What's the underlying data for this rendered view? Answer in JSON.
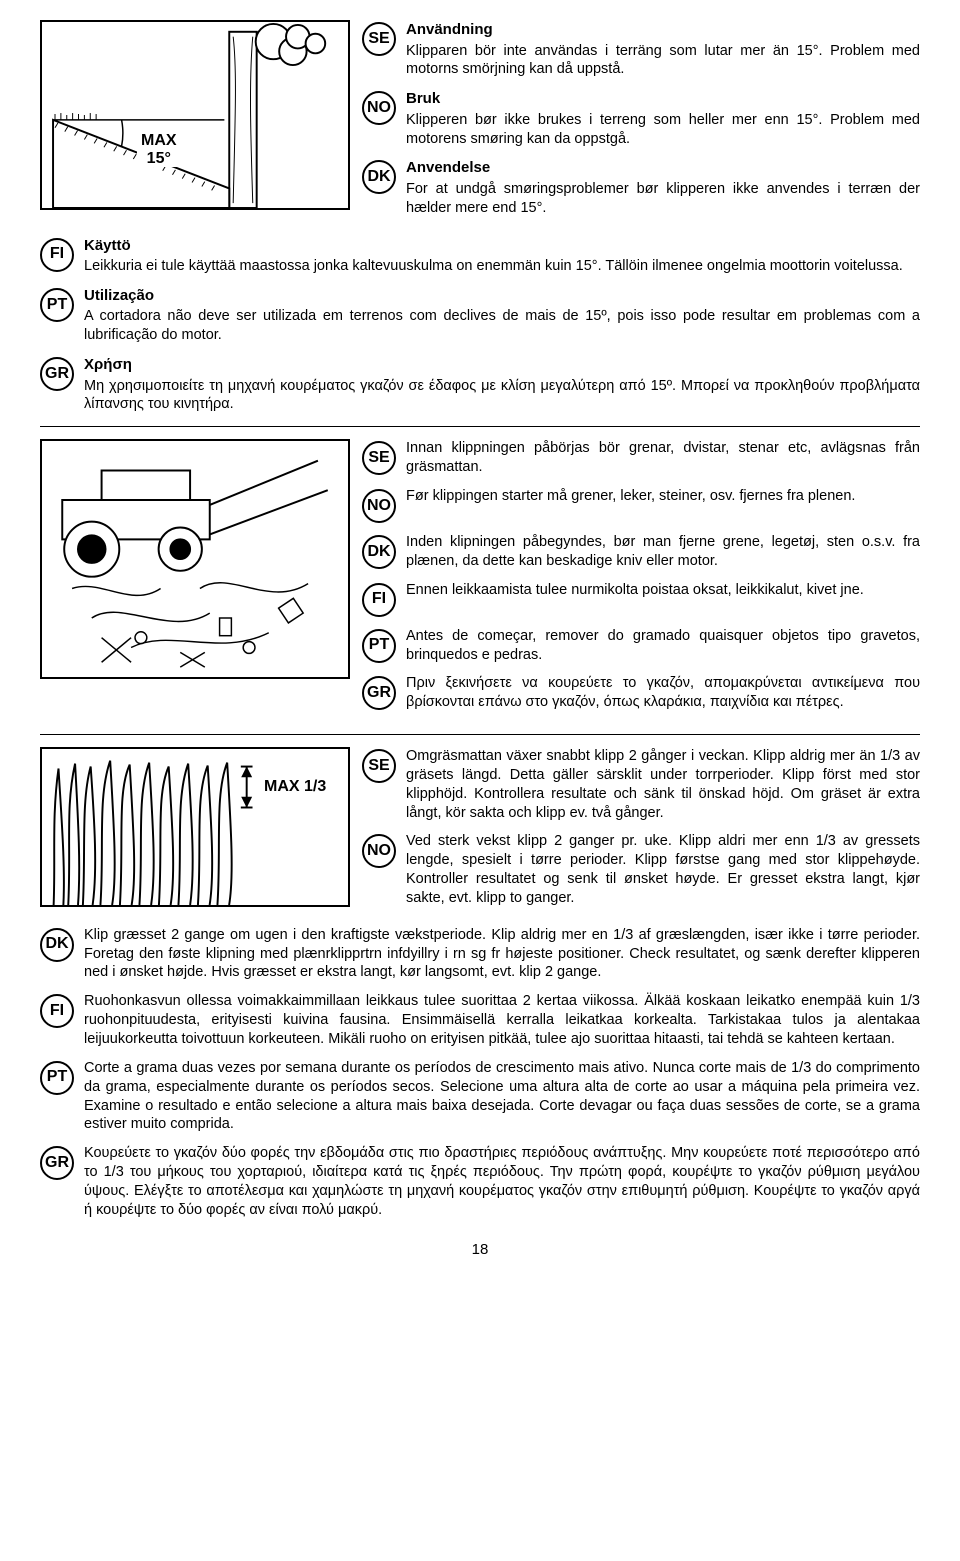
{
  "page_number": "18",
  "illus1": {
    "label": "MAX\n15°"
  },
  "illus3": {
    "label": "MAX 1/3"
  },
  "section1": {
    "right": [
      {
        "code": "SE",
        "heading": "Användning",
        "text": "Klipparen bör inte användas i terräng som lutar mer än 15°. Problem med motorns smörjning kan då uppstå."
      },
      {
        "code": "NO",
        "heading": "Bruk",
        "text": "Klipperen bør ikke brukes i terreng som heller mer enn 15°. Problem med motorens smøring kan da oppstgå."
      },
      {
        "code": "DK",
        "heading": "Anvendelse",
        "text": "For at undgå smøringsproblemer bør klipperen ikke anvendes i terræn der hælder mere end 15°."
      }
    ],
    "below": [
      {
        "code": "FI",
        "heading": "Käyttö",
        "text": "Leikkuria ei tule käyttää maastossa jonka kaltevuuskulma on enemmän kuin 15°. Tällöin ilmenee ongelmia moottorin voitelussa."
      },
      {
        "code": "PT",
        "heading": "Utilização",
        "text": "A cortadora não deve ser utilizada em terrenos com declives de mais de 15º, pois isso pode resultar em problemas com a lubrificação do motor."
      },
      {
        "code": "GR",
        "heading": "Χρήση",
        "text": "Μη χρησιμοποιείτε τη μηχανή κουρέματος γκαζόν σε έδαφος με κλίση μεγαλύτερη από 15º. Μπορεί να προκληθούν προβλήματα λίπανσης του κινητήρα."
      }
    ]
  },
  "section2": {
    "right": [
      {
        "code": "SE",
        "heading": "",
        "text": "Innan klippningen påbörjas bör grenar, dvistar, stenar etc, avlägsnas från gräsmattan."
      },
      {
        "code": "NO",
        "heading": "",
        "text": "Før klippingen starter må grener, leker, steiner, osv. fjernes fra plenen."
      },
      {
        "code": "DK",
        "heading": "",
        "text": "Inden klipningen påbegyndes, bør man fjerne grene, legetøj, sten o.s.v. fra plænen, da dette kan beskadige kniv eller motor."
      },
      {
        "code": "FI",
        "heading": "",
        "text": "Ennen leikkaamista tulee nurmikolta poistaa oksat, leikkikalut, kivet jne."
      },
      {
        "code": "PT",
        "heading": "",
        "text": "Antes de começar, remover do gramado quaisquer objetos tipo gravetos, brinquedos e pedras."
      },
      {
        "code": "GR",
        "heading": "",
        "text": "Πριν ξεκινήσετε να κουρεύετε το γκαζόν, απομακρύνεται αντικείμενα που βρίσκονται επάνω στο γκαζόν, όπως κλαράκια, παιχνίδια και πέτρες."
      }
    ]
  },
  "section3": {
    "right": [
      {
        "code": "SE",
        "heading": "",
        "text": "Omgräsmattan växer snabbt klipp 2 gånger i veckan.  Klipp aldrig mer än 1/3 av gräsets längd.  Detta gäller särsklit under torrperioder.  Klipp först med stor klipphöjd.  Kontrollera resultate och sänk til önskad höjd.  Om gräset är extra långt, kör sakta och klipp ev. två gånger."
      },
      {
        "code": "NO",
        "heading": "",
        "text": "Ved sterk vekst klipp 2 ganger pr. uke.  Klipp aldri mer enn 1/3 av gressets lengde, spesielt i tørre perioder.  Klipp førstse gang med stor klippehøyde.  Kontroller resultatet og senk til ønsket høyde.  Er gresset ekstra langt, kjør sakte, evt. klipp to ganger."
      }
    ],
    "below": [
      {
        "code": "DK",
        "heading": "",
        "text": "Klip græsset 2 gange om ugen i den kraftigste vækstperiode.  Klip aldrig mer en 1/3 af græslængden, især ikke i tørre perioder.  Foretag den føste klipning med plænrklipprtrn infdyillry i rn sg fr højeste positioner.  Check resultatet, og sænk derefter klipperen ned i ønsket højde.  Hvis græsset er ekstra langt, kør langsomt, evt. klip 2 gange."
      },
      {
        "code": "FI",
        "heading": "",
        "text": "Ruohonkasvun ollessa voimakkaimmillaan leikkaus tulee suorittaa 2 kertaa viikossa.  Älkää koskaan leikatko enempää kuin 1/3 ruohonpituudesta, erityisesti kuivina fausina.  Ensimmäisellä kerralla leikatkaa korkealta.  Tarkistakaa tulos ja alentakaa leijuukorkeutta toivottuun korkeuteen.  Mikäli ruoho on erityisen pitkää, tulee ajo suorittaa hitaasti, tai tehdä se kahteen kertaan."
      },
      {
        "code": "PT",
        "heading": "",
        "text": "Corte a grama duas vezes por semana durante os períodos de crescimento mais ativo. Nunca corte mais de 1/3 do comprimento da grama, especialmente durante os períodos secos. Selecione uma altura alta de corte ao usar a máquina pela primeira vez. Examine o resultado e então selecione a altura mais baixa desejada. Corte devagar ou faça duas sessões de corte, se a grama estiver muito comprida."
      },
      {
        "code": "GR",
        "heading": "",
        "text": "Κουρεύετε το γκαζόν δύο φορές την εβδομάδα στις πιο δραστήριες περιόδους ανάπτυξης. Μην κουρεύετε ποτέ περισσότερο από το 1/3 του μήκους του χορταριού, ιδιαίτερα κατά τις ξηρές περιόδους. Την πρώτη φορά, κουρέψτε το γκαζόν ρύθμιση μεγάλου ύψους. Ελέγξτε το αποτέλεσμα και χαμηλώστε τη μηχανή κουρέματος γκαζόν στην επιθυμητή ρύθμιση. Κουρέψτε το γκαζόν αργά ή κουρέψτε το δύο φορές αν είναι πολύ μακρύ."
      }
    ]
  }
}
